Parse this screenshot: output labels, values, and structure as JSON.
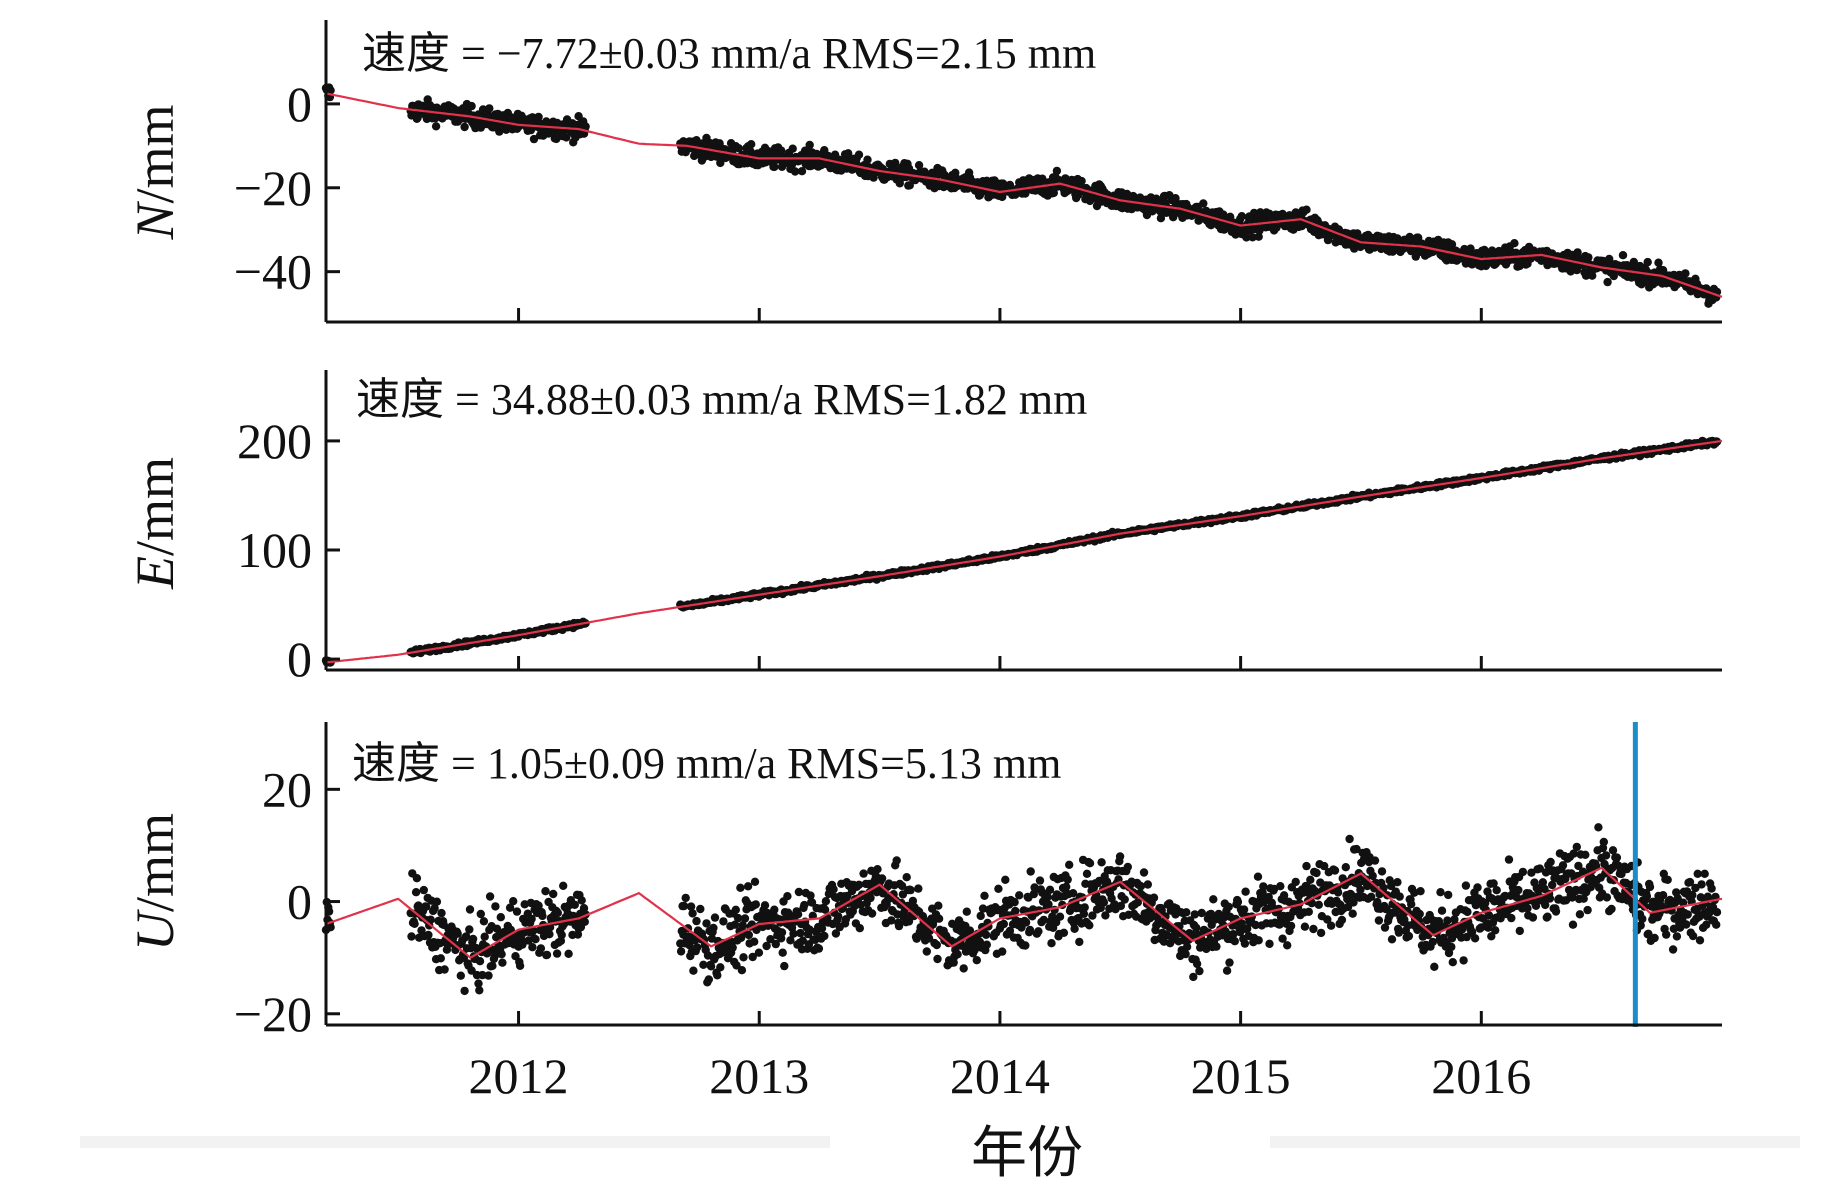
{
  "figure": {
    "xlabel": "年份",
    "x_range": [
      2011.2,
      2017.0
    ],
    "x_ticks": [
      2012,
      2013,
      2014,
      2015,
      2016
    ],
    "x_tick_labels": [
      "2012",
      "2013",
      "2014",
      "2015",
      "2016"
    ],
    "colors": {
      "points": "#111111",
      "fit": "#e0334a",
      "marker": "#1b8ec9",
      "axis": "#111111"
    }
  },
  "chart_data": [
    {
      "type": "scatter",
      "component": "N",
      "ylabel_var": "N",
      "ylabel_unit": "/mm",
      "ylim": [
        -52,
        20
      ],
      "y_ticks": [
        0,
        -20,
        -40
      ],
      "y_tick_labels": [
        "0",
        "−20",
        "−40"
      ],
      "annotation": "速度 = −7.72±0.03 mm/a  RMS=2.15 mm",
      "velocity": -7.72,
      "velocity_err": 0.03,
      "rms": 2.15,
      "gaps": [
        [
          2012.28,
          2012.67
        ]
      ],
      "noise": 2.15,
      "fit": {
        "x": [
          2011.2,
          2011.5,
          2011.8,
          2012.0,
          2012.25,
          2012.5,
          2012.7,
          2013.0,
          2013.25,
          2013.5,
          2013.75,
          2014.0,
          2014.25,
          2014.5,
          2014.75,
          2015.0,
          2015.25,
          2015.5,
          2015.75,
          2016.0,
          2016.25,
          2016.5,
          2016.75,
          2017.0
        ],
        "y": [
          2.5,
          -1.0,
          -3.0,
          -5.0,
          -6.0,
          -9.5,
          -10.0,
          -13.0,
          -13.0,
          -16.0,
          -18.0,
          -21.0,
          -19.0,
          -23.0,
          -25.0,
          -29.0,
          -27.5,
          -33.0,
          -34.0,
          -37.0,
          -36.0,
          -39.0,
          -41.0,
          -46.0
        ]
      }
    },
    {
      "type": "scatter",
      "component": "E",
      "ylabel_var": "E",
      "ylabel_unit": "/mm",
      "ylim": [
        -10,
        265
      ],
      "y_ticks": [
        0,
        100,
        200
      ],
      "y_tick_labels": [
        "0",
        "100",
        "200"
      ],
      "annotation": "速度 = 34.88±0.03 mm/a  RMS=1.82 mm",
      "velocity": 34.88,
      "velocity_err": 0.03,
      "rms": 1.82,
      "gaps": [
        [
          2012.28,
          2012.67
        ]
      ],
      "noise": 1.8,
      "fit": {
        "x": [
          2011.2,
          2011.5,
          2012.0,
          2012.5,
          2013.0,
          2013.5,
          2014.0,
          2014.5,
          2015.0,
          2015.5,
          2016.0,
          2016.5,
          2017.0
        ],
        "y": [
          -3.0,
          4.0,
          22.0,
          42.0,
          59.0,
          76.0,
          94.0,
          115.0,
          131.0,
          149.0,
          166.0,
          184.0,
          200.0
        ]
      }
    },
    {
      "type": "scatter",
      "component": "U",
      "ylabel_var": "U",
      "ylabel_unit": "/mm",
      "ylim": [
        -22,
        32
      ],
      "y_ticks": [
        20,
        0,
        -20
      ],
      "y_tick_labels": [
        "20",
        "0",
        "−20"
      ],
      "annotation": "速度 = 1.05±0.09 mm/a  RMS=5.13 mm",
      "velocity": 1.05,
      "velocity_err": 0.09,
      "rms": 5.13,
      "gaps": [
        [
          2012.28,
          2012.67
        ]
      ],
      "noise": 5.13,
      "marker_x": 2016.64,
      "fit": {
        "x": [
          2011.2,
          2011.5,
          2011.8,
          2012.0,
          2012.25,
          2012.5,
          2012.8,
          2013.0,
          2013.25,
          2013.5,
          2013.8,
          2014.0,
          2014.25,
          2014.5,
          2014.8,
          2015.0,
          2015.25,
          2015.5,
          2015.8,
          2016.0,
          2016.25,
          2016.5,
          2016.7,
          2017.0
        ],
        "y": [
          -4.0,
          0.5,
          -10.0,
          -5.0,
          -3.0,
          1.5,
          -8.0,
          -4.0,
          -3.0,
          3.0,
          -8.0,
          -3.0,
          -1.0,
          3.5,
          -7.0,
          -3.0,
          -0.5,
          5.0,
          -6.0,
          -2.0,
          1.0,
          6.0,
          -2.0,
          0.5
        ]
      }
    }
  ]
}
